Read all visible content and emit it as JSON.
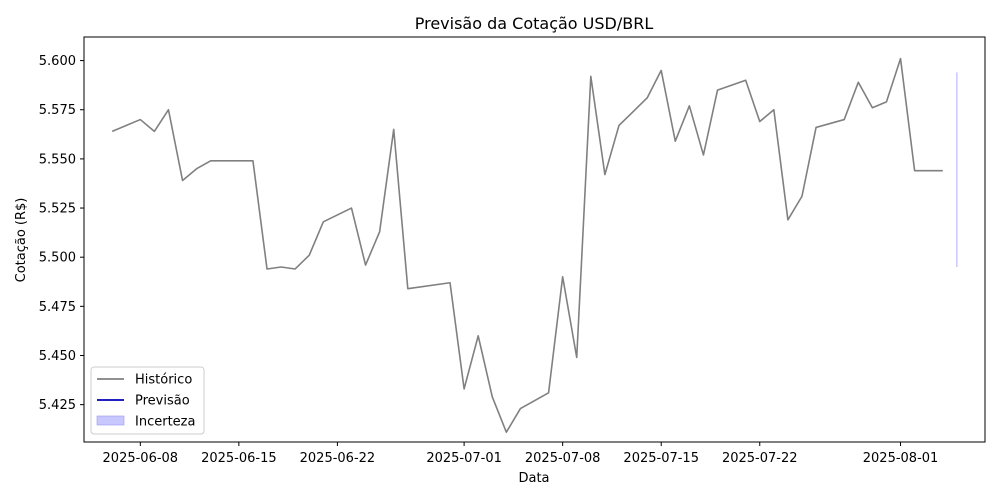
{
  "chart_data": {
    "type": "line",
    "title": "Previsão da Cotação USD/BRL",
    "xlabel": "Data",
    "ylabel": "Cotação (R$)",
    "xlim": [
      "2025-06-04",
      "2025-08-07"
    ],
    "ylim": [
      5.406,
      5.612
    ],
    "x_ticks": [
      "2025-06-08",
      "2025-06-15",
      "2025-06-22",
      "2025-07-01",
      "2025-07-08",
      "2025-07-15",
      "2025-07-22",
      "2025-08-01"
    ],
    "y_ticks": [
      5.425,
      5.45,
      5.475,
      5.5,
      5.525,
      5.55,
      5.575,
      5.6
    ],
    "y_tick_labels": [
      "5.425",
      "5.450",
      "5.475",
      "5.500",
      "5.525",
      "5.550",
      "5.575",
      "5.600"
    ],
    "grid": false,
    "legend": {
      "position": "lower-left",
      "entries": [
        {
          "label": "Histórico",
          "kind": "line",
          "color": "#808080"
        },
        {
          "label": "Previsão",
          "kind": "line",
          "color": "#0000bb"
        },
        {
          "label": "Incerteza",
          "kind": "patch",
          "color": "#c8c8ff"
        }
      ]
    },
    "series": [
      {
        "name": "Histórico",
        "color": "#808080",
        "points": [
          [
            "2025-06-06",
            5.564
          ],
          [
            "2025-06-08",
            5.57
          ],
          [
            "2025-06-09",
            5.564
          ],
          [
            "2025-06-10",
            5.575
          ],
          [
            "2025-06-11",
            5.539
          ],
          [
            "2025-06-12",
            5.545
          ],
          [
            "2025-06-13",
            5.549
          ],
          [
            "2025-06-15",
            5.549
          ],
          [
            "2025-06-16",
            5.549
          ],
          [
            "2025-06-17",
            5.494
          ],
          [
            "2025-06-18",
            5.495
          ],
          [
            "2025-06-19",
            5.494
          ],
          [
            "2025-06-20",
            5.501
          ],
          [
            "2025-06-21",
            5.518
          ],
          [
            "2025-06-23",
            5.525
          ],
          [
            "2025-06-24",
            5.496
          ],
          [
            "2025-06-25",
            5.513
          ],
          [
            "2025-06-26",
            5.565
          ],
          [
            "2025-06-27",
            5.484
          ],
          [
            "2025-06-30",
            5.487
          ],
          [
            "2025-07-01",
            5.433
          ],
          [
            "2025-07-02",
            5.46
          ],
          [
            "2025-07-03",
            5.429
          ],
          [
            "2025-07-04",
            5.411
          ],
          [
            "2025-07-05",
            5.423
          ],
          [
            "2025-07-07",
            5.431
          ],
          [
            "2025-07-08",
            5.49
          ],
          [
            "2025-07-09",
            5.449
          ],
          [
            "2025-07-10",
            5.592
          ],
          [
            "2025-07-11",
            5.542
          ],
          [
            "2025-07-12",
            5.567
          ],
          [
            "2025-07-14",
            5.581
          ],
          [
            "2025-07-15",
            5.595
          ],
          [
            "2025-07-16",
            5.559
          ],
          [
            "2025-07-17",
            5.577
          ],
          [
            "2025-07-18",
            5.552
          ],
          [
            "2025-07-19",
            5.585
          ],
          [
            "2025-07-21",
            5.59
          ],
          [
            "2025-07-22",
            5.569
          ],
          [
            "2025-07-23",
            5.575
          ],
          [
            "2025-07-24",
            5.519
          ],
          [
            "2025-07-25",
            5.531
          ],
          [
            "2025-07-26",
            5.566
          ],
          [
            "2025-07-28",
            5.57
          ],
          [
            "2025-07-29",
            5.589
          ],
          [
            "2025-07-30",
            5.576
          ],
          [
            "2025-07-31",
            5.579
          ],
          [
            "2025-08-01",
            5.601
          ],
          [
            "2025-08-02",
            5.544
          ],
          [
            "2025-08-04",
            5.544
          ]
        ]
      },
      {
        "name": "Previsão",
        "color": "#0000bb",
        "points": []
      }
    ],
    "uncertainty": {
      "name": "Incerteza",
      "color": "#c8c8ff",
      "x": "2025-08-05",
      "low": 5.495,
      "high": 5.594
    }
  }
}
